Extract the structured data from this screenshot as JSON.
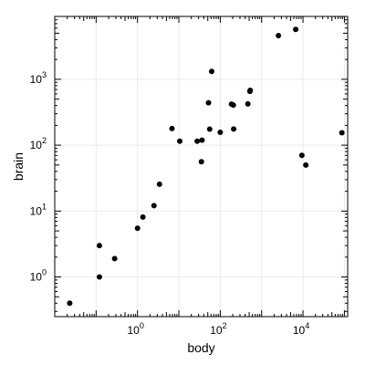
{
  "chart_data": {
    "type": "scatter",
    "xlabel": "body",
    "ylabel": "brain",
    "x_scale": "log10",
    "y_scale": "log10",
    "xlim": [
      0.01,
      120000
    ],
    "ylim": [
      0.25,
      9000
    ],
    "grid": true,
    "legend": "none",
    "point_color": "#000000",
    "x_ticks": [
      {
        "base": "10",
        "exp": "0",
        "value": 1
      },
      {
        "base": "10",
        "exp": "2",
        "value": 100
      },
      {
        "base": "10",
        "exp": "4",
        "value": 10000
      }
    ],
    "y_ticks": [
      {
        "base": "10",
        "exp": "0",
        "value": 1
      },
      {
        "base": "10",
        "exp": "1",
        "value": 10
      },
      {
        "base": "10",
        "exp": "2",
        "value": 100
      },
      {
        "base": "10",
        "exp": "3",
        "value": 1000
      }
    ],
    "points": [
      {
        "x": 0.023,
        "y": 0.4
      },
      {
        "x": 0.12,
        "y": 1.0
      },
      {
        "x": 0.12,
        "y": 3.0
      },
      {
        "x": 0.28,
        "y": 1.9
      },
      {
        "x": 1.0,
        "y": 5.5
      },
      {
        "x": 1.35,
        "y": 8.1
      },
      {
        "x": 2.5,
        "y": 12.1
      },
      {
        "x": 3.4,
        "y": 25.6
      },
      {
        "x": 6.8,
        "y": 179
      },
      {
        "x": 10.5,
        "y": 115
      },
      {
        "x": 27.7,
        "y": 115
      },
      {
        "x": 35,
        "y": 56
      },
      {
        "x": 36.3,
        "y": 119
      },
      {
        "x": 52,
        "y": 440
      },
      {
        "x": 55.5,
        "y": 175
      },
      {
        "x": 62,
        "y": 1320
      },
      {
        "x": 100,
        "y": 157
      },
      {
        "x": 187,
        "y": 419
      },
      {
        "x": 207,
        "y": 406
      },
      {
        "x": 211,
        "y": 176
      },
      {
        "x": 465,
        "y": 423
      },
      {
        "x": 521,
        "y": 655
      },
      {
        "x": 529,
        "y": 680
      },
      {
        "x": 2547,
        "y": 4603
      },
      {
        "x": 6654,
        "y": 5712
      },
      {
        "x": 9400,
        "y": 70
      },
      {
        "x": 11700,
        "y": 50
      },
      {
        "x": 87000,
        "y": 154.5
      }
    ]
  }
}
